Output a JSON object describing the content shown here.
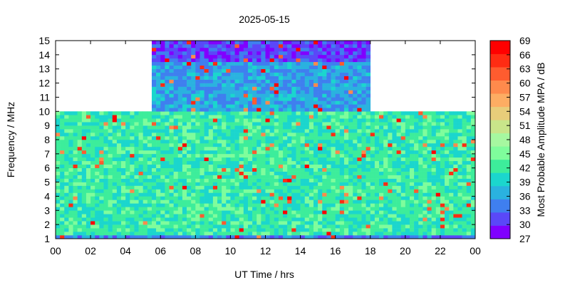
{
  "chart_data": {
    "type": "heatmap",
    "title": "2025-05-15",
    "xlabel": "UT Time / hrs",
    "ylabel": "Frequency / MHz",
    "colorbar_label": "Most Probable Amplitude MPA / dB",
    "xlim": [
      0,
      24
    ],
    "ylim": [
      1,
      15
    ],
    "x_ticks": [
      "00",
      "02",
      "04",
      "06",
      "08",
      "10",
      "12",
      "14",
      "16",
      "18",
      "20",
      "22",
      "00"
    ],
    "y_ticks": [
      "1",
      "2",
      "3",
      "4",
      "5",
      "6",
      "7",
      "8",
      "9",
      "10",
      "11",
      "12",
      "13",
      "14",
      "15"
    ],
    "colorbar_ticks": [
      "27",
      "30",
      "33",
      "36",
      "39",
      "42",
      "45",
      "48",
      "51",
      "54",
      "57",
      "60",
      "63",
      "66",
      "69"
    ],
    "colorbar_range": [
      27,
      69
    ],
    "colorbar_colors": [
      "#8000ff",
      "#5a48f8",
      "#3f7fef",
      "#2ab2df",
      "#1bd6cd",
      "#3ded9b",
      "#7ffd9c",
      "#a6f8a0",
      "#c9e58a",
      "#e8cd7a",
      "#fdad63",
      "#ff8a4c",
      "#ff5c2f",
      "#ff2c13",
      "#ff0000"
    ],
    "data_coverage": [
      {
        "t_start": 0.0,
        "t_end": 5.5,
        "f_min": 1,
        "f_max": 10
      },
      {
        "t_start": 5.5,
        "t_end": 18.0,
        "f_min": 1,
        "f_max": 15
      },
      {
        "t_start": 18.0,
        "t_end": 24.0,
        "f_min": 1,
        "f_max": 10
      }
    ],
    "typical_levels_db": [
      {
        "f_min": 1.0,
        "f_max": 1.2,
        "value": 34
      },
      {
        "f_min": 1.2,
        "f_max": 10.0,
        "value": 42
      },
      {
        "f_min": 10.0,
        "f_max": 13.5,
        "value": 36
      },
      {
        "f_min": 13.5,
        "f_max": 15.0,
        "value": 31
      }
    ]
  }
}
